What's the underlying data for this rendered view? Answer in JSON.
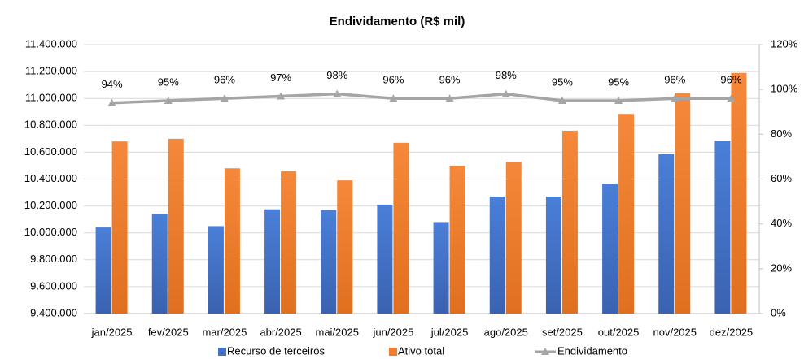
{
  "chart_data": {
    "type": "bar_line",
    "title": "Endividamento (R$ mil)",
    "categories": [
      "jan/2025",
      "fev/2025",
      "mar/2025",
      "abr/2025",
      "mai/2025",
      "jun/2025",
      "jul/2025",
      "ago/2025",
      "set/2025",
      "out/2025",
      "nov/2025",
      "dez/2025"
    ],
    "series": [
      {
        "name": "Recurso de terceiros",
        "type": "bar",
        "color": "#4472c4",
        "values": [
          10040000,
          10140000,
          10050000,
          10175000,
          10170000,
          10210000,
          10080000,
          10270000,
          10270000,
          10365000,
          10585000,
          10685000
        ]
      },
      {
        "name": "Ativo total",
        "type": "bar",
        "color": "#ed7d31",
        "values": [
          10680000,
          10700000,
          10480000,
          10460000,
          10390000,
          10670000,
          10500000,
          10530000,
          10760000,
          10885000,
          11040000,
          11190000
        ]
      },
      {
        "name": "Endividamento",
        "type": "line",
        "axis": "y2",
        "color": "#a5a5a5",
        "values": [
          94,
          95,
          96,
          97,
          98,
          96,
          96,
          98,
          95,
          95,
          96,
          96
        ],
        "value_labels": [
          "94%",
          "95%",
          "96%",
          "97%",
          "98%",
          "96%",
          "96%",
          "98%",
          "95%",
          "95%",
          "96%",
          "96%"
        ]
      }
    ],
    "ylim": [
      9400000,
      11400000
    ],
    "yticks": [
      {
        "value": 9400000,
        "label": "9.400.000"
      },
      {
        "value": 9600000,
        "label": "9.600.000"
      },
      {
        "value": 9800000,
        "label": "9.800.000"
      },
      {
        "value": 10000000,
        "label": "10.000.000"
      },
      {
        "value": 10200000,
        "label": "10.200.000"
      },
      {
        "value": 10400000,
        "label": "10.400.000"
      },
      {
        "value": 10600000,
        "label": "10.600.000"
      },
      {
        "value": 10800000,
        "label": "10.800.000"
      },
      {
        "value": 11000000,
        "label": "11.000.000"
      },
      {
        "value": 11200000,
        "label": "11.200.000"
      },
      {
        "value": 11400000,
        "label": "11.400.000"
      }
    ],
    "y2lim": [
      0,
      120
    ],
    "y2ticks": [
      {
        "value": 0,
        "label": "0%"
      },
      {
        "value": 20,
        "label": "20%"
      },
      {
        "value": 40,
        "label": "40%"
      },
      {
        "value": 60,
        "label": "60%"
      },
      {
        "value": 80,
        "label": "80%"
      },
      {
        "value": 100,
        "label": "100%"
      },
      {
        "value": 120,
        "label": "120%"
      }
    ],
    "grid": true,
    "legend": "bottom"
  }
}
